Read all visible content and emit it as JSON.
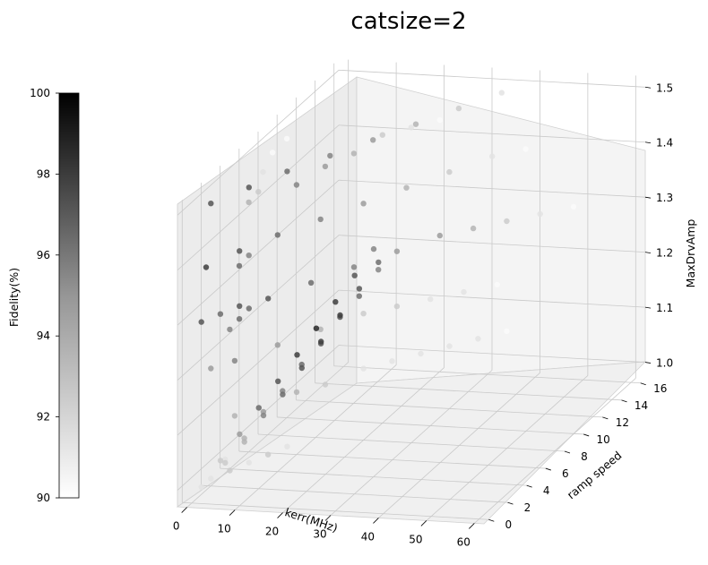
{
  "chart_data": {
    "type": "scatter",
    "title": "catsize=2",
    "xlabel": "kerr(MHz)",
    "ylabel": "ramp speed",
    "zlabel": "MaxDrvAmp",
    "x_ticks": [
      "0",
      "10",
      "20",
      "30",
      "40",
      "50",
      "60"
    ],
    "y_ticks": [
      "0",
      "2",
      "4",
      "6",
      "8",
      "10",
      "12",
      "14",
      "16"
    ],
    "z_ticks": [
      "1.0",
      "1.1",
      "1.2",
      "1.3",
      "1.4",
      "1.5"
    ],
    "xlim": [
      -2,
      62
    ],
    "ylim": [
      -0.5,
      16.5
    ],
    "zlim": [
      0.97,
      1.52
    ],
    "colorbar": {
      "label": "Fidelity(%)",
      "range": [
        90,
        100
      ],
      "ticks": [
        "90",
        "92",
        "94",
        "96",
        "98",
        "100"
      ],
      "colormap": "Greys"
    },
    "grid": true,
    "series": [
      {
        "points": [
          [
            2,
            1,
            1.0,
            91
          ],
          [
            4,
            2,
            1.0,
            92
          ],
          [
            6,
            3,
            1.0,
            91
          ],
          [
            8,
            4,
            1.0,
            92
          ],
          [
            10,
            5,
            1.0,
            91
          ],
          [
            5,
            2,
            1.1,
            93
          ],
          [
            8,
            3,
            1.1,
            92
          ],
          [
            12,
            5,
            1.1,
            93
          ],
          [
            16,
            6,
            1.1,
            92
          ],
          [
            20,
            8,
            1.1,
            91
          ],
          [
            24,
            9,
            1.1,
            91
          ],
          [
            28,
            10,
            1.1,
            91
          ],
          [
            32,
            11,
            1.1,
            91
          ],
          [
            36,
            12,
            1.1,
            91
          ],
          [
            40,
            13,
            1.1,
            90
          ],
          [
            2,
            1,
            1.2,
            94
          ],
          [
            5,
            2,
            1.2,
            95
          ],
          [
            10,
            4,
            1.2,
            94
          ],
          [
            15,
            6,
            1.2,
            93
          ],
          [
            20,
            8,
            1.2,
            92
          ],
          [
            25,
            9,
            1.2,
            92
          ],
          [
            30,
            10,
            1.2,
            91
          ],
          [
            35,
            11,
            1.2,
            91
          ],
          [
            40,
            12,
            1.2,
            90
          ],
          [
            2,
            0,
            1.3,
            97
          ],
          [
            4,
            1,
            1.3,
            96
          ],
          [
            6,
            2,
            1.3,
            97
          ],
          [
            10,
            3,
            1.3,
            97
          ],
          [
            15,
            5,
            1.3,
            96
          ],
          [
            20,
            7,
            1.3,
            95
          ],
          [
            25,
            9,
            1.3,
            94
          ],
          [
            30,
            11,
            1.3,
            94
          ],
          [
            35,
            12,
            1.3,
            93
          ],
          [
            40,
            13,
            1.3,
            92
          ],
          [
            45,
            14,
            1.3,
            91
          ],
          [
            50,
            15,
            1.3,
            90
          ],
          [
            3,
            0,
            1.4,
            98
          ],
          [
            6,
            2,
            1.4,
            97
          ],
          [
            10,
            4,
            1.4,
            96
          ],
          [
            15,
            6,
            1.4,
            95
          ],
          [
            20,
            8,
            1.4,
            94
          ],
          [
            25,
            10,
            1.4,
            93
          ],
          [
            30,
            12,
            1.4,
            92
          ],
          [
            35,
            14,
            1.4,
            91
          ],
          [
            40,
            15,
            1.4,
            90
          ],
          [
            2,
            1,
            1.5,
            97
          ],
          [
            6,
            3,
            1.5,
            97
          ],
          [
            10,
            5,
            1.5,
            96
          ],
          [
            15,
            7,
            1.5,
            95
          ],
          [
            20,
            9,
            1.5,
            94
          ],
          [
            25,
            11,
            1.5,
            93
          ],
          [
            30,
            13,
            1.5,
            92
          ],
          [
            35,
            15,
            1.5,
            91
          ],
          [
            2,
            0,
            1.0,
            91
          ],
          [
            6,
            0,
            1.05,
            92
          ],
          [
            10,
            0,
            1.1,
            94
          ],
          [
            14,
            0,
            1.15,
            96
          ],
          [
            18,
            0,
            1.2,
            97
          ],
          [
            22,
            0,
            1.25,
            98
          ],
          [
            26,
            0,
            1.3,
            99
          ],
          [
            30,
            0,
            1.35,
            98
          ],
          [
            34,
            0,
            1.4,
            97
          ],
          [
            38,
            0,
            1.45,
            95
          ],
          [
            5,
            1,
            1.03,
            92
          ],
          [
            9,
            1,
            1.07,
            93
          ],
          [
            13,
            1,
            1.12,
            95
          ],
          [
            17,
            1,
            1.16,
            96
          ],
          [
            21,
            1,
            1.21,
            97
          ],
          [
            25,
            1,
            1.26,
            98
          ],
          [
            29,
            1,
            1.31,
            98
          ],
          [
            33,
            1,
            1.36,
            97
          ],
          [
            37,
            1,
            1.41,
            96
          ],
          [
            3,
            2,
            1.02,
            91
          ],
          [
            7,
            2,
            1.06,
            93
          ],
          [
            11,
            2,
            1.11,
            94
          ],
          [
            15,
            2,
            1.15,
            95
          ],
          [
            19,
            2,
            1.2,
            96
          ],
          [
            23,
            2,
            1.24,
            97
          ],
          [
            27,
            2,
            1.29,
            97
          ],
          [
            31,
            2,
            1.33,
            96
          ],
          [
            35,
            2,
            1.38,
            95
          ],
          [
            2,
            3,
            1.24,
            95
          ],
          [
            4,
            3,
            1.26,
            96
          ],
          [
            6,
            3,
            1.28,
            96
          ],
          [
            2,
            4,
            1.34,
            96
          ],
          [
            4,
            4,
            1.36,
            95
          ],
          [
            2,
            5,
            1.44,
            93
          ],
          [
            4,
            5,
            1.46,
            92
          ],
          [
            3,
            6,
            1.48,
            91
          ],
          [
            3,
            7,
            1.5,
            90
          ],
          [
            4,
            8,
            1.51,
            90
          ],
          [
            10,
            6,
            1.46,
            95
          ],
          [
            14,
            7,
            1.48,
            94
          ],
          [
            18,
            8,
            1.49,
            93
          ],
          [
            22,
            9,
            1.51,
            92
          ],
          [
            26,
            10,
            1.51,
            91
          ],
          [
            30,
            11,
            1.51,
            90
          ]
        ]
      }
    ]
  }
}
